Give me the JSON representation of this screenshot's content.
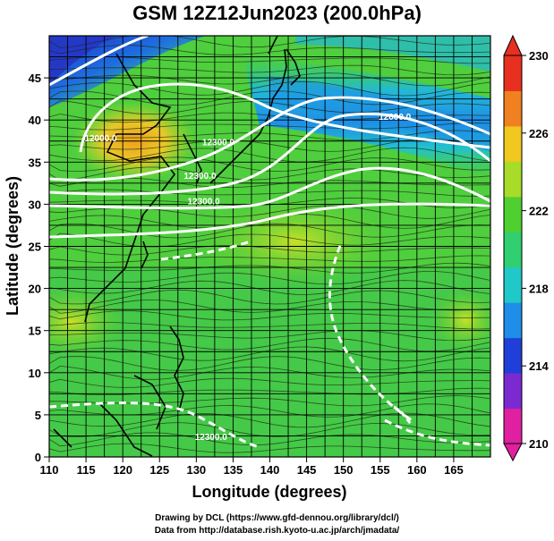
{
  "title": "GSM 12Z12Jun2023 (200.0hPa)",
  "x_axis": {
    "label": "Longitude (degrees)",
    "range": [
      110,
      170
    ],
    "ticks": [
      "110",
      "115",
      "120",
      "125",
      "130",
      "135",
      "140",
      "145",
      "150",
      "155",
      "160",
      "165"
    ]
  },
  "y_axis": {
    "label": "Latitude  (degrees)",
    "range": [
      0,
      50
    ],
    "ticks": [
      "0",
      "5",
      "10",
      "15",
      "20",
      "25",
      "30",
      "35",
      "40",
      "45"
    ]
  },
  "colorbar": {
    "labels": [
      "230",
      "226",
      "222",
      "218",
      "214",
      "210"
    ],
    "range": [
      210,
      230
    ],
    "colors": [
      "#e020a0",
      "#7a2ad0",
      "#1f3fd8",
      "#1e8ee8",
      "#20c8c8",
      "#30d070",
      "#50d030",
      "#a8dc28",
      "#f0c820",
      "#f08020",
      "#e83020"
    ]
  },
  "contour_labels": [
    {
      "text": "12000.0",
      "lon": 117,
      "lat": 37.5
    },
    {
      "text": "12000.0",
      "lon": 157,
      "lat": 40
    },
    {
      "text": "12300.0",
      "lon": 131,
      "lat": 30
    },
    {
      "text": "12300.0",
      "lon": 130.5,
      "lat": 33
    },
    {
      "text": "12300.0",
      "lon": 133,
      "lat": 37
    },
    {
      "text": "12300.0",
      "lon": 132,
      "lat": 2
    }
  ],
  "footer": {
    "line1": "Drawing by DCL (https://www.gfd-dennou.org/library/dcl/)",
    "line2": "Data from http://database.rish.kyoto-u.ac.jp/arch/jmadata/"
  },
  "chart_data": {
    "type": "heatmap",
    "title": "GSM 12Z12Jun2023 (200.0hPa)",
    "xlabel": "Longitude (degrees)",
    "ylabel": "Latitude  (degrees)",
    "xlim": [
      110,
      170
    ],
    "ylim": [
      0,
      50
    ],
    "colorbar_range": [
      210,
      230
    ],
    "features": [
      {
        "lon": 122,
        "lat": 39,
        "value": 226
      },
      {
        "lon": 113,
        "lat": 47,
        "value": 214
      },
      {
        "lon": 150,
        "lat": 38,
        "value": 218
      },
      {
        "lon": 165,
        "lat": 40,
        "value": 218
      },
      {
        "lon": 165,
        "lat": 18,
        "value": 224
      },
      {
        "lon": 135,
        "lat": 25,
        "value": 222
      }
    ]
  }
}
